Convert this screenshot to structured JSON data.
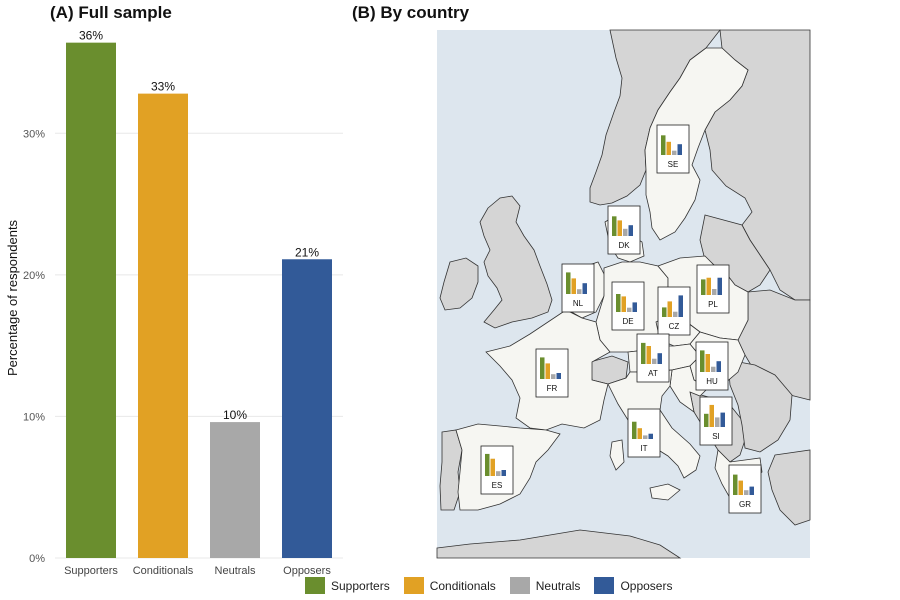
{
  "chart_data": [
    {
      "type": "bar",
      "title": "(A) Full sample",
      "xlabel": "",
      "ylabel": "Percentage of respondents",
      "ylim": [
        0,
        38
      ],
      "yticks": [
        0,
        10,
        20,
        30
      ],
      "ytick_labels": [
        "0%",
        "10%",
        "20%",
        "30%"
      ],
      "categories": [
        "Supporters",
        "Conditionals",
        "Neutrals",
        "Opposers"
      ],
      "values": [
        36.4,
        32.8,
        9.6,
        21.1
      ],
      "data_labels": [
        "36%",
        "33%",
        "10%",
        "21%"
      ],
      "grid": true
    },
    {
      "type": "bar",
      "title": "(B) By country",
      "description": "map of Europe with a small inset bar chart per country",
      "categories": [
        "Supporters",
        "Conditionals",
        "Neutrals",
        "Opposers"
      ],
      "countries": [
        {
          "code": "SE",
          "values": [
            0.82,
            0.55,
            0.18,
            0.45
          ]
        },
        {
          "code": "DK",
          "values": [
            0.82,
            0.65,
            0.3,
            0.45
          ]
        },
        {
          "code": "NL",
          "values": [
            0.9,
            0.65,
            0.2,
            0.45
          ]
        },
        {
          "code": "DE",
          "values": [
            0.75,
            0.65,
            0.18,
            0.4
          ]
        },
        {
          "code": "CZ",
          "values": [
            0.4,
            0.65,
            0.22,
            0.9
          ]
        },
        {
          "code": "PL",
          "values": [
            0.65,
            0.72,
            0.25,
            0.72
          ]
        },
        {
          "code": "AT",
          "values": [
            0.88,
            0.75,
            0.22,
            0.45
          ]
        },
        {
          "code": "HU",
          "values": [
            0.9,
            0.75,
            0.22,
            0.45
          ]
        },
        {
          "code": "FR",
          "values": [
            0.9,
            0.65,
            0.2,
            0.25
          ]
        },
        {
          "code": "IT",
          "values": [
            0.72,
            0.45,
            0.15,
            0.22
          ]
        },
        {
          "code": "SI",
          "values": [
            0.55,
            0.92,
            0.4,
            0.6
          ]
        },
        {
          "code": "ES",
          "values": [
            0.92,
            0.72,
            0.2,
            0.25
          ]
        },
        {
          "code": "GR",
          "values": [
            0.85,
            0.6,
            0.2,
            0.35
          ]
        }
      ]
    }
  ],
  "colors": {
    "Supporters": "#6a8e2e",
    "Conditionals": "#e1a124",
    "Neutrals": "#a8a8a8",
    "Opposers": "#325a98",
    "sea": "#dde6ee",
    "land_focus": "#f6f6f2",
    "land_other": "#d5d5d5"
  },
  "legend": {
    "position": "bottom",
    "items": [
      "Supporters",
      "Conditionals",
      "Neutrals",
      "Opposers"
    ]
  }
}
